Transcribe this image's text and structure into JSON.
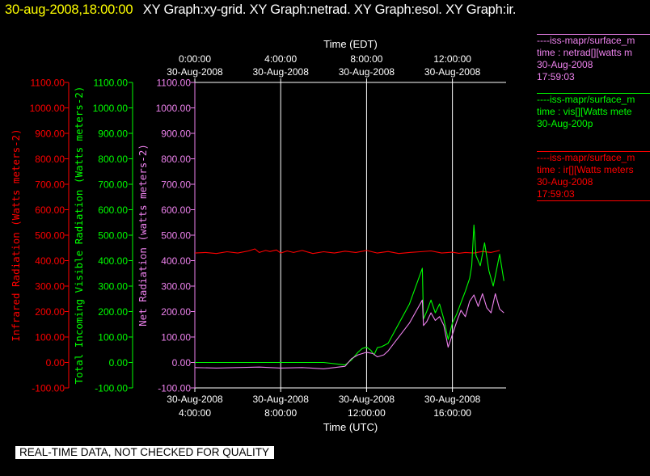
{
  "header": {
    "timestamp": "30-aug-2008,18:00:00",
    "graphs": "XY Graph:xy-grid.  XY Graph:netrad.  XY Graph:esol.  XY Graph:ir."
  },
  "colors": {
    "background": "#000000",
    "timestamp": "#ffff00",
    "ir": "#ff0000",
    "vis": "#00ff00",
    "net": "#ee82ee",
    "axis": "#ffffff"
  },
  "legend": [
    {
      "source": "----iss-mapr/surface_m",
      "variable": "time : netrad[][watts m",
      "date": "30-Aug-2008",
      "time": "17:59:03",
      "color": "#ee82ee"
    },
    {
      "source": "----iss-mapr/surface_m",
      "variable": "time : vis[][Watts mete",
      "date": "30-Aug-200p",
      "time": "",
      "color": "#00ff00"
    },
    {
      "source": "----iss-mapr/surface_m",
      "variable": "time : ir[][Watts meters",
      "date": "30-Aug-2008",
      "time": "17:59:03",
      "color": "#ff0000"
    }
  ],
  "footer": {
    "quality_note": "REAL-TIME DATA, NOT CHECKED FOR QUALITY"
  },
  "chart_data": {
    "type": "line",
    "x_unit": "hours UTC, 30-Aug-2008",
    "xlim": [
      4.0,
      18.5
    ],
    "top_axis": {
      "title": "Time (EDT)",
      "ticks": [
        {
          "x": 4,
          "time": "0:00:00",
          "date": "30-Aug-2008"
        },
        {
          "x": 8,
          "time": "4:00:00",
          "date": "30-Aug-2008"
        },
        {
          "x": 12,
          "time": "8:00:00",
          "date": "30-Aug-2008"
        },
        {
          "x": 16,
          "time": "12:00:00",
          "date": "30-Aug-2008"
        }
      ]
    },
    "bottom_axis": {
      "title": "Time (UTC)",
      "ticks": [
        {
          "x": 4,
          "date": "30-Aug-2008",
          "time": "4:00:00"
        },
        {
          "x": 8,
          "date": "30-Aug-2008",
          "time": "8:00:00"
        },
        {
          "x": 12,
          "date": "30-Aug-2008",
          "time": "12:00:00"
        },
        {
          "x": 16,
          "date": "30-Aug-2008",
          "time": "16:00:00"
        }
      ]
    },
    "vertical_grid_x": [
      8,
      12,
      16
    ],
    "y_axes": [
      {
        "key": "ir",
        "label": "Infrared Radiation (Watts meters-2)",
        "color": "#ff0000",
        "ylim": [
          -100,
          1100
        ],
        "ticks": [
          "-100.00",
          "0.00",
          "100.00",
          "200.00",
          "300.00",
          "400.00",
          "500.00",
          "600.00",
          "700.00",
          "800.00",
          "900.00",
          "1000.00",
          "1100.00"
        ]
      },
      {
        "key": "vis",
        "label": "Total Incoming Visible Radiation (Watts meters-2)",
        "color": "#00ff00",
        "ylim": [
          -100,
          1100
        ],
        "ticks": [
          "-100.00",
          "0.00",
          "100.00",
          "200.00",
          "300.00",
          "400.00",
          "500.00",
          "600.00",
          "700.00",
          "800.00",
          "900.00",
          "1000.00",
          "1100.00"
        ]
      },
      {
        "key": "net",
        "label": "Net Radiation (watts meters-2)",
        "color": "#ee82ee",
        "ylim": [
          -100,
          1100
        ],
        "ticks": [
          "-100.00",
          "0.00",
          "100.00",
          "200.00",
          "300.00",
          "400.00",
          "500.00",
          "600.00",
          "700.00",
          "800.00",
          "900.00",
          "1000.00",
          "1100.00"
        ]
      }
    ],
    "series": [
      {
        "name": "ir",
        "axis": "ir",
        "color": "#ff0000",
        "x": [
          4.0,
          4.5,
          5.0,
          5.5,
          6.0,
          6.5,
          6.8,
          7.0,
          7.3,
          7.5,
          7.8,
          8.0,
          8.3,
          8.6,
          9.0,
          9.5,
          10.0,
          10.5,
          11.0,
          11.5,
          12.0,
          12.5,
          13.0,
          13.5,
          14.0,
          14.5,
          15.0,
          15.5,
          16.0,
          16.3,
          16.6,
          17.0,
          17.4,
          17.8,
          18.2
        ],
        "values": [
          430,
          432,
          428,
          435,
          430,
          438,
          446,
          432,
          440,
          436,
          442,
          430,
          438,
          432,
          440,
          428,
          435,
          430,
          437,
          432,
          440,
          430,
          436,
          428,
          432,
          435,
          438,
          430,
          433,
          429,
          432,
          430,
          436,
          432,
          440
        ]
      },
      {
        "name": "vis",
        "axis": "vis",
        "color": "#00ff00",
        "x": [
          4.0,
          5.0,
          6.0,
          7.0,
          8.0,
          9.0,
          10.0,
          11.0,
          11.3,
          11.6,
          11.8,
          12.0,
          12.2,
          12.35,
          12.5,
          12.7,
          13.0,
          14.0,
          14.6,
          14.65,
          14.8,
          15.0,
          15.2,
          15.4,
          15.6,
          15.8,
          16.0,
          16.2,
          16.4,
          16.6,
          16.8,
          16.9,
          17.0,
          17.1,
          17.3,
          17.5,
          17.7,
          17.9,
          18.0,
          18.2,
          18.4
        ],
        "values": [
          0,
          0,
          0,
          0,
          0,
          0,
          0,
          -10,
          10,
          40,
          55,
          60,
          48,
          30,
          58,
          62,
          75,
          230,
          370,
          170,
          200,
          245,
          195,
          230,
          170,
          90,
          155,
          190,
          235,
          280,
          330,
          380,
          540,
          420,
          380,
          470,
          360,
          300,
          340,
          425,
          320
        ]
      },
      {
        "name": "net",
        "axis": "net",
        "color": "#ee82ee",
        "x": [
          4.0,
          5.0,
          6.0,
          7.0,
          8.0,
          9.0,
          10.0,
          10.5,
          11.0,
          11.3,
          11.6,
          12.0,
          12.3,
          12.5,
          12.8,
          13.0,
          14.0,
          14.6,
          14.65,
          14.8,
          15.0,
          15.2,
          15.4,
          15.6,
          15.8,
          16.0,
          16.2,
          16.4,
          16.6,
          16.8,
          17.0,
          17.2,
          17.4,
          17.6,
          17.8,
          18.0,
          18.2,
          18.4
        ],
        "values": [
          -20,
          -22,
          -20,
          -18,
          -22,
          -20,
          -25,
          -20,
          -15,
          15,
          30,
          40,
          35,
          22,
          30,
          45,
          155,
          245,
          145,
          160,
          195,
          165,
          180,
          145,
          60,
          110,
          160,
          205,
          180,
          240,
          265,
          220,
          270,
          215,
          195,
          270,
          210,
          195
        ]
      }
    ]
  }
}
